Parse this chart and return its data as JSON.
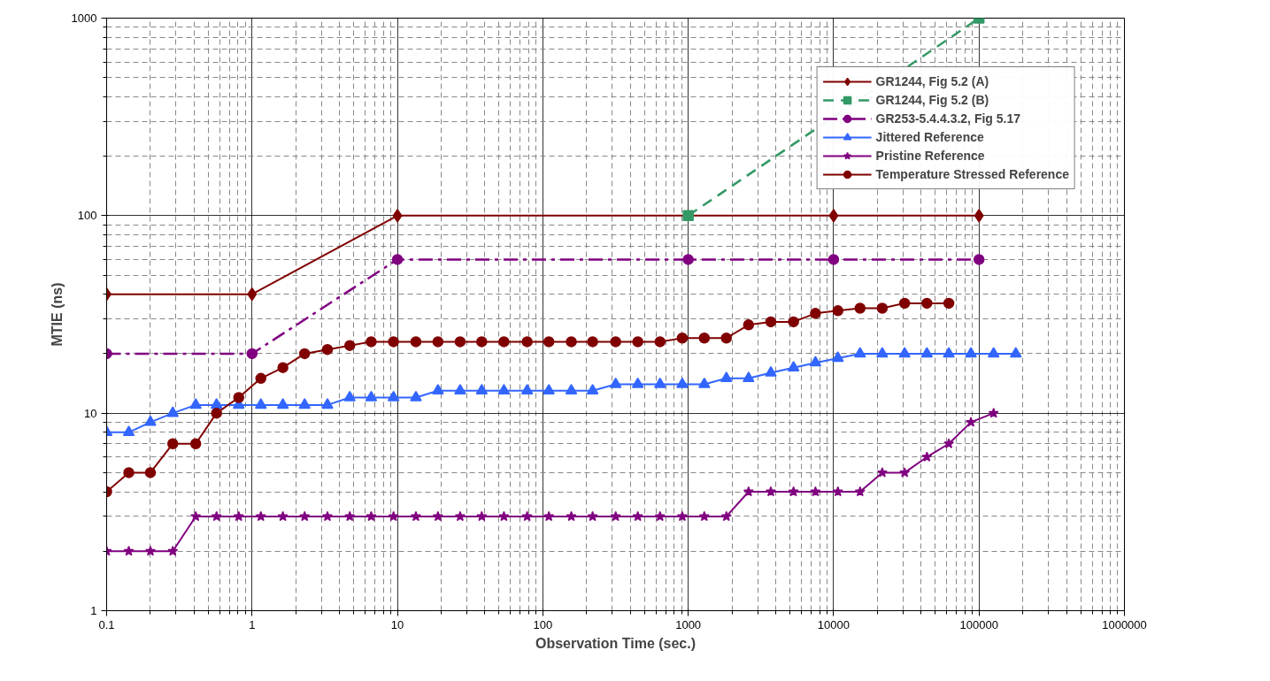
{
  "chart_data": {
    "type": "line",
    "xlabel": "Observation Time (sec.)",
    "ylabel": "MTIE (ns)",
    "log": "xy",
    "xlim": [
      0.1,
      1000000
    ],
    "ylim": [
      1,
      1000
    ],
    "xticks": [
      0.1,
      1,
      10,
      100,
      1000,
      10000,
      100000,
      1000000
    ],
    "yticks": [
      1,
      10,
      100,
      1000
    ],
    "grid": true,
    "legend": "top right",
    "series": [
      {
        "name": "GR1244, Fig 5.2 (A)",
        "color": "#800000",
        "marker": "diamond",
        "line_style": "solid",
        "x": [
          0.1,
          1,
          10,
          10000,
          100000
        ],
        "values": [
          40,
          40,
          100,
          100,
          100
        ]
      },
      {
        "name": "GR1244, Fig 5.2 (B)",
        "color": "#339966",
        "marker": "square",
        "line_style": "dashed",
        "x": [
          1000,
          100000
        ],
        "values": [
          100,
          1000
        ]
      },
      {
        "name": "GR253-5.4.4.3.2, Fig 5.17",
        "color": "#800080",
        "marker": "circle",
        "line_style": "dashdot",
        "x": [
          0.1,
          1,
          10,
          1000,
          10000,
          100000
        ],
        "values": [
          20,
          20,
          60,
          60,
          60,
          60
        ]
      },
      {
        "name": "Jittered Reference",
        "color": "#3366ff",
        "marker": "triangle",
        "line_style": "solid",
        "x": [
          0.1,
          0.142,
          0.2,
          0.285,
          0.41,
          0.57,
          0.81,
          1.15,
          1.63,
          2.3,
          3.3,
          4.7,
          6.6,
          9.4,
          13.4,
          19,
          27,
          38,
          54,
          78,
          110,
          157,
          220,
          317,
          450,
          640,
          910,
          1290,
          1830,
          2600,
          3700,
          5300,
          7500,
          10700,
          15200,
          21600,
          30800,
          43800,
          62000,
          88000,
          126000,
          179000
        ],
        "values": [
          8,
          8,
          9,
          10,
          11,
          11,
          11,
          11,
          11,
          11,
          11,
          12,
          12,
          12,
          12,
          13,
          13,
          13,
          13,
          13,
          13,
          13,
          13,
          14,
          14,
          14,
          14,
          14,
          15,
          15,
          16,
          17,
          18,
          19,
          20,
          20,
          20,
          20,
          20,
          20,
          20,
          20
        ]
      },
      {
        "name": "Pristine Reference",
        "color": "#800080",
        "marker": "star",
        "line_style": "solid",
        "x": [
          0.1,
          0.142,
          0.2,
          0.285,
          0.41,
          0.57,
          0.81,
          1.15,
          1.63,
          2.3,
          3.3,
          4.7,
          6.6,
          9.4,
          13.4,
          19,
          27,
          38,
          54,
          78,
          110,
          157,
          220,
          317,
          450,
          640,
          910,
          1290,
          1830,
          2600,
          3700,
          5300,
          7500,
          10700,
          15200,
          21600,
          30800,
          43800,
          62000,
          88000,
          126000
        ],
        "values": [
          2,
          2,
          2,
          2,
          3,
          3,
          3,
          3,
          3,
          3,
          3,
          3,
          3,
          3,
          3,
          3,
          3,
          3,
          3,
          3,
          3,
          3,
          3,
          3,
          3,
          3,
          3,
          3,
          3,
          4,
          4,
          4,
          4,
          4,
          4,
          5,
          5,
          6,
          7,
          9,
          10
        ]
      },
      {
        "name": "Temperature Stressed Reference",
        "color": "#800000",
        "marker": "circle",
        "line_style": "solid",
        "x": [
          0.1,
          0.142,
          0.2,
          0.285,
          0.41,
          0.57,
          0.81,
          1.15,
          1.63,
          2.3,
          3.3,
          4.7,
          6.6,
          9.4,
          13.4,
          19,
          27,
          38,
          54,
          78,
          110,
          157,
          220,
          317,
          450,
          640,
          910,
          1290,
          1830,
          2600,
          3700,
          5300,
          7500,
          10700,
          15200,
          21600,
          30800,
          43800,
          62000
        ],
        "values": [
          4,
          5,
          5,
          7,
          7,
          10,
          12,
          15,
          17,
          20,
          21,
          22,
          23,
          23,
          23,
          23,
          23,
          23,
          23,
          23,
          23,
          23,
          23,
          23,
          23,
          23,
          24,
          24,
          24,
          28,
          29,
          29,
          32,
          33,
          34,
          34,
          36,
          36,
          36
        ]
      }
    ]
  }
}
